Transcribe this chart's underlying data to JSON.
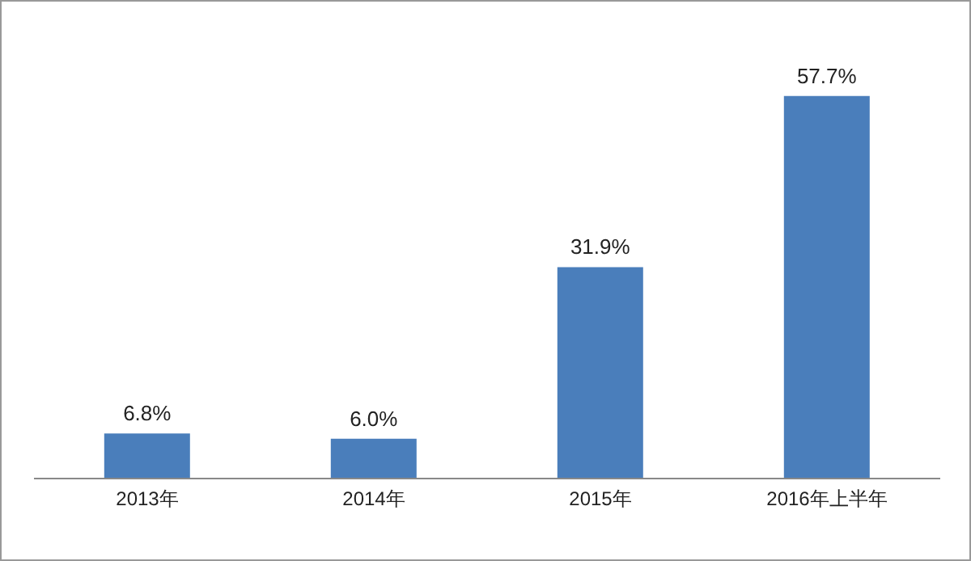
{
  "chart_data": {
    "type": "bar",
    "categories": [
      "2013年",
      "2014年",
      "2015年",
      "2016年上半年"
    ],
    "values": [
      6.8,
      6.0,
      31.9,
      57.7
    ],
    "value_labels": [
      "6.8%",
      "6.0%",
      "31.9%",
      "57.7%"
    ],
    "color": "#4a7ebb"
  }
}
